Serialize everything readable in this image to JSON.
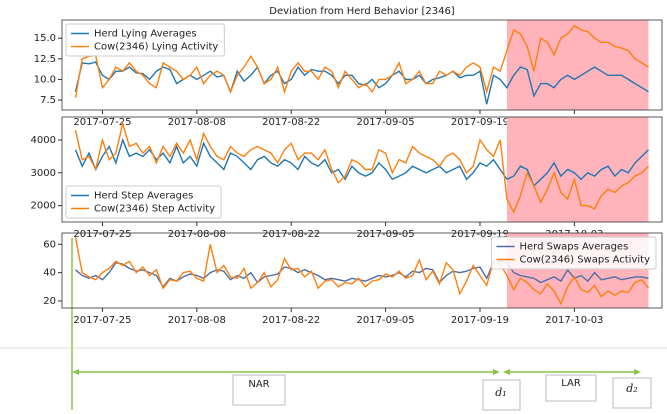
{
  "chart_data": [
    {
      "type": "line",
      "title": "Deviation from Herd Behavior [2346]",
      "x": [
        "2017-07-21",
        "2017-07-22",
        "2017-07-23",
        "2017-07-24",
        "2017-07-25",
        "2017-07-26",
        "2017-07-27",
        "2017-07-28",
        "2017-07-29",
        "2017-07-30",
        "2017-07-31",
        "2017-08-01",
        "2017-08-02",
        "2017-08-03",
        "2017-08-04",
        "2017-08-05",
        "2017-08-06",
        "2017-08-07",
        "2017-08-08",
        "2017-08-09",
        "2017-08-10",
        "2017-08-11",
        "2017-08-12",
        "2017-08-13",
        "2017-08-14",
        "2017-08-15",
        "2017-08-16",
        "2017-08-17",
        "2017-08-18",
        "2017-08-19",
        "2017-08-20",
        "2017-08-21",
        "2017-08-22",
        "2017-08-23",
        "2017-08-24",
        "2017-08-25",
        "2017-08-26",
        "2017-08-27",
        "2017-08-28",
        "2017-08-29",
        "2017-08-30",
        "2017-08-31",
        "2017-09-01",
        "2017-09-02",
        "2017-09-03",
        "2017-09-04",
        "2017-09-05",
        "2017-09-06",
        "2017-09-07",
        "2017-09-08",
        "2017-09-09",
        "2017-09-10",
        "2017-09-11",
        "2017-09-12",
        "2017-09-13",
        "2017-09-14",
        "2017-09-15",
        "2017-09-16",
        "2017-09-17",
        "2017-09-18",
        "2017-09-19",
        "2017-09-20",
        "2017-09-21",
        "2017-09-22",
        "2017-09-23",
        "2017-09-24",
        "2017-09-25",
        "2017-09-26",
        "2017-09-27",
        "2017-09-28",
        "2017-09-29",
        "2017-09-30",
        "2017-10-01",
        "2017-10-02",
        "2017-10-03",
        "2017-10-04",
        "2017-10-05",
        "2017-10-06",
        "2017-10-07",
        "2017-10-08",
        "2017-10-09",
        "2017-10-10",
        "2017-10-11",
        "2017-10-12",
        "2017-10-13",
        "2017-10-14"
      ],
      "series": [
        {
          "name": "Herd Lying Averages",
          "color": "#1f77b4",
          "values": [
            8.5,
            12.0,
            11.9,
            12.1,
            10.5,
            10.0,
            11.0,
            11.0,
            11.5,
            10.8,
            10.7,
            10.0,
            11.0,
            11.5,
            11.2,
            9.5,
            10.0,
            10.5,
            10.0,
            10.5,
            11.0,
            10.3,
            10.5,
            8.5,
            11.0,
            9.8,
            10.5,
            11.5,
            9.5,
            10.5,
            11.0,
            9.5,
            10.0,
            11.5,
            10.5,
            11.2,
            11.0,
            11.0,
            10.5,
            9.5,
            10.5,
            10.5,
            9.5,
            9.3,
            10.0,
            9.0,
            9.5,
            10.5,
            11.0,
            10.0,
            10.0,
            10.5,
            9.5,
            10.0,
            10.2,
            10.5,
            11.0,
            10.2,
            10.5,
            10.5,
            11.0,
            7.0,
            10.5,
            10.0,
            9.0,
            10.5,
            11.5,
            11.2,
            8.0,
            9.5,
            9.5,
            9.0,
            10.0,
            10.5,
            10.0,
            10.5,
            11.0,
            11.5,
            11.0,
            10.5,
            10.5,
            10.5,
            10.0,
            9.5,
            9.0,
            8.5
          ]
        },
        {
          "name": "Cow(2346) Lying Activity",
          "color": "#ff7f0e",
          "values": [
            7.8,
            12.5,
            12.8,
            12.9,
            9.0,
            10.0,
            11.5,
            11.0,
            12.0,
            11.0,
            10.5,
            9.5,
            9.0,
            12.0,
            11.5,
            11.0,
            10.0,
            10.5,
            11.5,
            9.5,
            10.5,
            11.0,
            10.5,
            8.5,
            10.5,
            11.5,
            12.8,
            11.5,
            9.5,
            10.0,
            11.5,
            8.5,
            11.0,
            12.0,
            11.0,
            11.0,
            10.0,
            11.5,
            11.0,
            9.0,
            11.0,
            10.0,
            9.0,
            9.5,
            8.5,
            10.0,
            10.0,
            10.5,
            12.0,
            9.5,
            10.0,
            11.0,
            9.5,
            9.5,
            11.0,
            10.5,
            11.0,
            10.5,
            11.5,
            12.0,
            11.5,
            8.5,
            11.5,
            11.0,
            13.5,
            16.0,
            15.5,
            14.0,
            11.0,
            15.0,
            14.5,
            13.0,
            15.0,
            15.5,
            16.5,
            16.0,
            15.8,
            15.0,
            14.5,
            14.5,
            14.0,
            13.8,
            13.5,
            12.5,
            12.0,
            11.5
          ]
        }
      ],
      "xlim": [
        "2017-07-19",
        "2017-10-16"
      ],
      "xticks": [
        "2017-07-25",
        "2017-08-08",
        "2017-08-22",
        "2017-09-05",
        "2017-09-19",
        "2017-10-03"
      ],
      "ylim": [
        6.3,
        17.2
      ],
      "yticks": [
        7.5,
        {
          "value": 10,
          "label": "10.0"
        },
        12.5,
        {
          "value": 15,
          "label": "15.0"
        }
      ],
      "highlight": {
        "from": "2017-09-23",
        "to": "2017-10-14",
        "color": "#ffb3ba"
      },
      "legend": "upper left"
    },
    {
      "type": "line",
      "x": [
        "2017-07-21",
        "2017-07-22",
        "2017-07-23",
        "2017-07-24",
        "2017-07-25",
        "2017-07-26",
        "2017-07-27",
        "2017-07-28",
        "2017-07-29",
        "2017-07-30",
        "2017-07-31",
        "2017-08-01",
        "2017-08-02",
        "2017-08-03",
        "2017-08-04",
        "2017-08-05",
        "2017-08-06",
        "2017-08-07",
        "2017-08-08",
        "2017-08-09",
        "2017-08-10",
        "2017-08-11",
        "2017-08-12",
        "2017-08-13",
        "2017-08-14",
        "2017-08-15",
        "2017-08-16",
        "2017-08-17",
        "2017-08-18",
        "2017-08-19",
        "2017-08-20",
        "2017-08-21",
        "2017-08-22",
        "2017-08-23",
        "2017-08-24",
        "2017-08-25",
        "2017-08-26",
        "2017-08-27",
        "2017-08-28",
        "2017-08-29",
        "2017-08-30",
        "2017-08-31",
        "2017-09-01",
        "2017-09-02",
        "2017-09-03",
        "2017-09-04",
        "2017-09-05",
        "2017-09-06",
        "2017-09-07",
        "2017-09-08",
        "2017-09-09",
        "2017-09-10",
        "2017-09-11",
        "2017-09-12",
        "2017-09-13",
        "2017-09-14",
        "2017-09-15",
        "2017-09-16",
        "2017-09-17",
        "2017-09-18",
        "2017-09-19",
        "2017-09-20",
        "2017-09-21",
        "2017-09-22",
        "2017-09-23",
        "2017-09-24",
        "2017-09-25",
        "2017-09-26",
        "2017-09-27",
        "2017-09-28",
        "2017-09-29",
        "2017-09-30",
        "2017-10-01",
        "2017-10-02",
        "2017-10-03",
        "2017-10-04",
        "2017-10-05",
        "2017-10-06",
        "2017-10-07",
        "2017-10-08",
        "2017-10-09",
        "2017-10-10",
        "2017-10-11",
        "2017-10-12",
        "2017-10-13",
        "2017-10-14"
      ],
      "series": [
        {
          "name": "Herd Step Averages",
          "color": "#1f77b4",
          "values": [
            3700,
            3200,
            3600,
            3100,
            3500,
            3800,
            3300,
            4000,
            3500,
            3600,
            3500,
            3700,
            3400,
            3600,
            3300,
            3800,
            3300,
            3500,
            3200,
            3900,
            3500,
            3300,
            3100,
            3600,
            3500,
            3300,
            3100,
            3400,
            3500,
            3300,
            3200,
            3400,
            3300,
            3100,
            3500,
            3300,
            3200,
            3400,
            3000,
            3100,
            2800,
            3200,
            3000,
            2900,
            3000,
            3300,
            3100,
            2800,
            2900,
            3000,
            3200,
            3100,
            3000,
            3100,
            3200,
            3000,
            3100,
            3200,
            2800,
            3000,
            3300,
            3200,
            3400,
            3100,
            2800,
            2900,
            3200,
            3100,
            2600,
            2800,
            3000,
            3300,
            2900,
            3100,
            3000,
            2800,
            3000,
            2900,
            3100,
            3200,
            2900,
            3100,
            3000,
            3300,
            3500,
            3700
          ]
        },
        {
          "name": "Cow(2346) Step Activity",
          "color": "#ff7f0e",
          "values": [
            4300,
            3400,
            3500,
            3100,
            4000,
            3400,
            3600,
            4500,
            3800,
            3900,
            3600,
            3800,
            3300,
            3800,
            3500,
            3900,
            3600,
            4000,
            3400,
            4200,
            3800,
            3500,
            3400,
            3800,
            3600,
            3500,
            3700,
            3800,
            3700,
            3600,
            3300,
            3700,
            3900,
            3400,
            3600,
            3600,
            3400,
            3700,
            3100,
            2700,
            2900,
            3400,
            3300,
            3100,
            3100,
            3700,
            3600,
            3000,
            3400,
            3300,
            3800,
            3600,
            3500,
            3400,
            3200,
            3500,
            3600,
            3400,
            3000,
            3200,
            4000,
            3700,
            3500,
            4000,
            2200,
            1800,
            2300,
            3000,
            2600,
            2100,
            2500,
            3000,
            2400,
            2200,
            2800,
            2000,
            2000,
            1900,
            2300,
            2500,
            2400,
            2600,
            2700,
            2900,
            3000,
            3200
          ]
        }
      ],
      "xlim": [
        "2017-07-19",
        "2017-10-16"
      ],
      "xticks": [
        "2017-07-25",
        "2017-08-08",
        "2017-08-22",
        "2017-09-05",
        "2017-09-19",
        "2017-10-03"
      ],
      "ylim": [
        1500,
        4700
      ],
      "yticks": [
        2000,
        3000,
        4000
      ],
      "highlight": {
        "from": "2017-09-23",
        "to": "2017-10-14",
        "color": "#ffb3ba"
      },
      "legend": "lower left"
    },
    {
      "type": "line",
      "x": [
        "2017-07-21",
        "2017-07-22",
        "2017-07-23",
        "2017-07-24",
        "2017-07-25",
        "2017-07-26",
        "2017-07-27",
        "2017-07-28",
        "2017-07-29",
        "2017-07-30",
        "2017-07-31",
        "2017-08-01",
        "2017-08-02",
        "2017-08-03",
        "2017-08-04",
        "2017-08-05",
        "2017-08-06",
        "2017-08-07",
        "2017-08-08",
        "2017-08-09",
        "2017-08-10",
        "2017-08-11",
        "2017-08-12",
        "2017-08-13",
        "2017-08-14",
        "2017-08-15",
        "2017-08-16",
        "2017-08-17",
        "2017-08-18",
        "2017-08-19",
        "2017-08-20",
        "2017-08-21",
        "2017-08-22",
        "2017-08-23",
        "2017-08-24",
        "2017-08-25",
        "2017-08-26",
        "2017-08-27",
        "2017-08-28",
        "2017-08-29",
        "2017-08-30",
        "2017-08-31",
        "2017-09-01",
        "2017-09-02",
        "2017-09-03",
        "2017-09-04",
        "2017-09-05",
        "2017-09-06",
        "2017-09-07",
        "2017-09-08",
        "2017-09-09",
        "2017-09-10",
        "2017-09-11",
        "2017-09-12",
        "2017-09-13",
        "2017-09-14",
        "2017-09-15",
        "2017-09-16",
        "2017-09-17",
        "2017-09-18",
        "2017-09-19",
        "2017-09-20",
        "2017-09-21",
        "2017-09-22",
        "2017-09-23",
        "2017-09-24",
        "2017-09-25",
        "2017-09-26",
        "2017-09-27",
        "2017-09-28",
        "2017-09-29",
        "2017-09-30",
        "2017-10-01",
        "2017-10-02",
        "2017-10-03",
        "2017-10-04",
        "2017-10-05",
        "2017-10-06",
        "2017-10-07",
        "2017-10-08",
        "2017-10-09",
        "2017-10-10",
        "2017-10-11",
        "2017-10-12",
        "2017-10-13",
        "2017-10-14"
      ],
      "series": [
        {
          "name": "Herd Swaps Averages",
          "color": "#4c6fa8",
          "values": [
            42,
            38,
            36,
            38,
            35,
            40,
            47,
            46,
            43,
            41,
            42,
            40,
            38,
            30,
            36,
            34,
            37,
            39,
            38,
            36,
            40,
            42,
            41,
            35,
            38,
            36,
            40,
            33,
            37,
            38,
            39,
            44,
            43,
            40,
            42,
            40,
            38,
            35,
            36,
            35,
            34,
            36,
            35,
            34,
            36,
            38,
            37,
            38,
            40,
            37,
            41,
            40,
            43,
            42,
            33,
            38,
            41,
            40,
            41,
            43,
            44,
            36,
            47,
            48,
            47,
            40,
            38,
            37,
            36,
            33,
            35,
            37,
            34,
            42,
            36,
            38,
            34,
            40,
            35,
            36,
            37,
            35,
            36,
            37,
            37,
            36
          ]
        },
        {
          "name": "Cow(2346) Swaps Activity",
          "color": "#ff7f0e",
          "values": [
            65,
            40,
            37,
            35,
            40,
            43,
            48,
            45,
            48,
            40,
            44,
            38,
            42,
            29,
            35,
            34,
            40,
            41,
            36,
            34,
            60,
            40,
            45,
            37,
            36,
            43,
            29,
            33,
            40,
            30,
            35,
            50,
            42,
            43,
            37,
            41,
            29,
            34,
            35,
            30,
            33,
            32,
            36,
            30,
            34,
            35,
            39,
            37,
            41,
            36,
            38,
            49,
            35,
            41,
            32,
            47,
            42,
            25,
            34,
            45,
            38,
            31,
            48,
            46,
            38,
            28,
            36,
            33,
            28,
            25,
            32,
            27,
            18,
            30,
            37,
            28,
            26,
            31,
            23,
            27,
            24,
            27,
            26,
            33,
            35,
            29
          ]
        }
      ],
      "xlim": [
        "2017-07-19",
        "2017-10-16"
      ],
      "xticks": [
        "2017-07-25",
        "2017-08-08",
        "2017-08-22",
        "2017-09-05",
        "2017-09-19",
        "2017-10-03"
      ],
      "ylim": [
        15,
        68
      ],
      "yticks": [
        20,
        40,
        60
      ],
      "highlight": {
        "from": "2017-09-23",
        "to": "2017-10-14",
        "color": "#ffb3ba"
      },
      "legend": "upper right"
    }
  ],
  "annotations": [
    "NAR",
    "d₁",
    "LAR",
    "d₂"
  ]
}
